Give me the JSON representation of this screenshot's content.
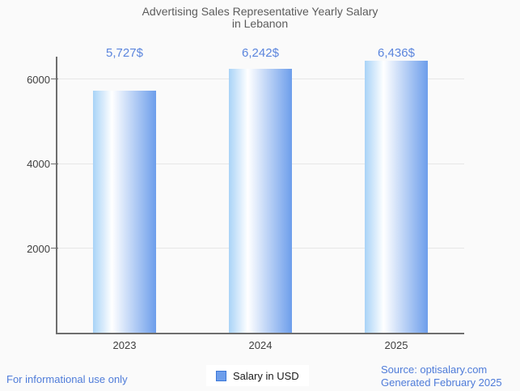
{
  "title": {
    "line1": "Advertising Sales Representative Yearly Salary",
    "line2": "in Lebanon"
  },
  "chart_data": {
    "type": "bar",
    "categories": [
      "2023",
      "2024",
      "2025"
    ],
    "values": [
      5727,
      6242,
      6436
    ],
    "annotations": [
      "5,727$",
      "6,242$",
      "6,436$"
    ],
    "series": [
      {
        "name": "Salary in USD",
        "values": [
          5727,
          6242,
          6436
        ]
      }
    ],
    "title": "Advertising Sales Representative Yearly Salary in Lebanon",
    "xlabel": "",
    "ylabel": "",
    "ylim": [
      0,
      6530
    ],
    "yticks": [
      2000,
      4000,
      6000
    ],
    "grid": true,
    "legend_position": "bottom"
  },
  "legend": {
    "label": "Salary in USD"
  },
  "footer": {
    "left": "For informational use only",
    "source": "Source: optisalary.com",
    "generated": "Generated February 2025"
  },
  "colors": {
    "background": "#fafafa",
    "title_text": "#5c5c5c",
    "axis_text": "#404040",
    "axis_line": "#6e6e6e",
    "gridline": "#e6e6e6",
    "annotation": "#5b85dd",
    "bar_gradient_left": "#a9d3f7",
    "bar_gradient_mid": "#ffffff",
    "bar_gradient_right": "#6d9eeb",
    "legend_swatch_fill": "#6d9eeb",
    "legend_swatch_border": "#3c78d8",
    "footer_link": "#4f7cd9"
  }
}
